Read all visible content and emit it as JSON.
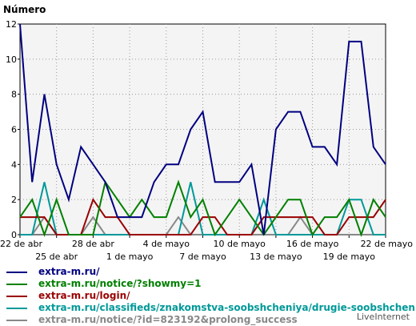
{
  "chart_data": {
    "type": "line",
    "title": "Número",
    "x_tick_labels_row1": [
      "22 de abr",
      "28 de abr",
      "4 de mayo",
      "10 de mayo",
      "16 de mayo",
      "22 de mayo"
    ],
    "x_tick_labels_row2": [
      "25 de abr",
      "1 de mayo",
      "7 de mayo",
      "13 de mayo",
      "19 de mayo"
    ],
    "y_ticks": [
      0,
      2,
      4,
      6,
      8,
      10,
      12
    ],
    "ylim": [
      0,
      12
    ],
    "grid": true,
    "legend_position": "bottom",
    "series": [
      {
        "name": "extra-m.ru/",
        "color": "#000080",
        "values": [
          12,
          3,
          8,
          4,
          2,
          5,
          4,
          3,
          1,
          1,
          1,
          3,
          4,
          4,
          6,
          7,
          3,
          3,
          3,
          4,
          0,
          6,
          7,
          7,
          5,
          5,
          4,
          11,
          11,
          5,
          4
        ]
      },
      {
        "name": "extra-m.ru/notice/?showmy=1",
        "color": "#008000",
        "values": [
          1,
          2,
          0,
          2,
          0,
          0,
          0,
          3,
          2,
          1,
          2,
          1,
          1,
          3,
          1,
          2,
          0,
          1,
          2,
          1,
          0,
          1,
          2,
          2,
          0,
          1,
          1,
          2,
          0,
          2,
          1
        ]
      },
      {
        "name": "extra-m.ru/login/",
        "color": "#990000",
        "values": [
          1,
          1,
          1,
          0,
          0,
          0,
          2,
          1,
          1,
          0,
          0,
          0,
          0,
          0,
          0,
          1,
          1,
          0,
          0,
          0,
          1,
          1,
          1,
          1,
          1,
          0,
          0,
          1,
          1,
          1,
          2
        ]
      },
      {
        "name": "extra-m.ru/classifieds/znakomstva-soobshcheniya/drugie-soobshcheniya/",
        "color": "#009999",
        "values": [
          0,
          0,
          3,
          0,
          0,
          0,
          0,
          0,
          0,
          0,
          0,
          0,
          0,
          0,
          3,
          0,
          0,
          0,
          0,
          0,
          2,
          0,
          0,
          0,
          0,
          0,
          0,
          2,
          2,
          0,
          0
        ]
      },
      {
        "name": "extra-m.ru/notice/?id=823192&prolong_success",
        "color": "#888888",
        "values": [
          0,
          0,
          1,
          0,
          0,
          0,
          1,
          0,
          0,
          0,
          0,
          0,
          0,
          1,
          0,
          0,
          0,
          0,
          0,
          0,
          0,
          0,
          0,
          1,
          0,
          0,
          0,
          0,
          0,
          0,
          0
        ]
      }
    ]
  },
  "credit": "LiveInternet"
}
